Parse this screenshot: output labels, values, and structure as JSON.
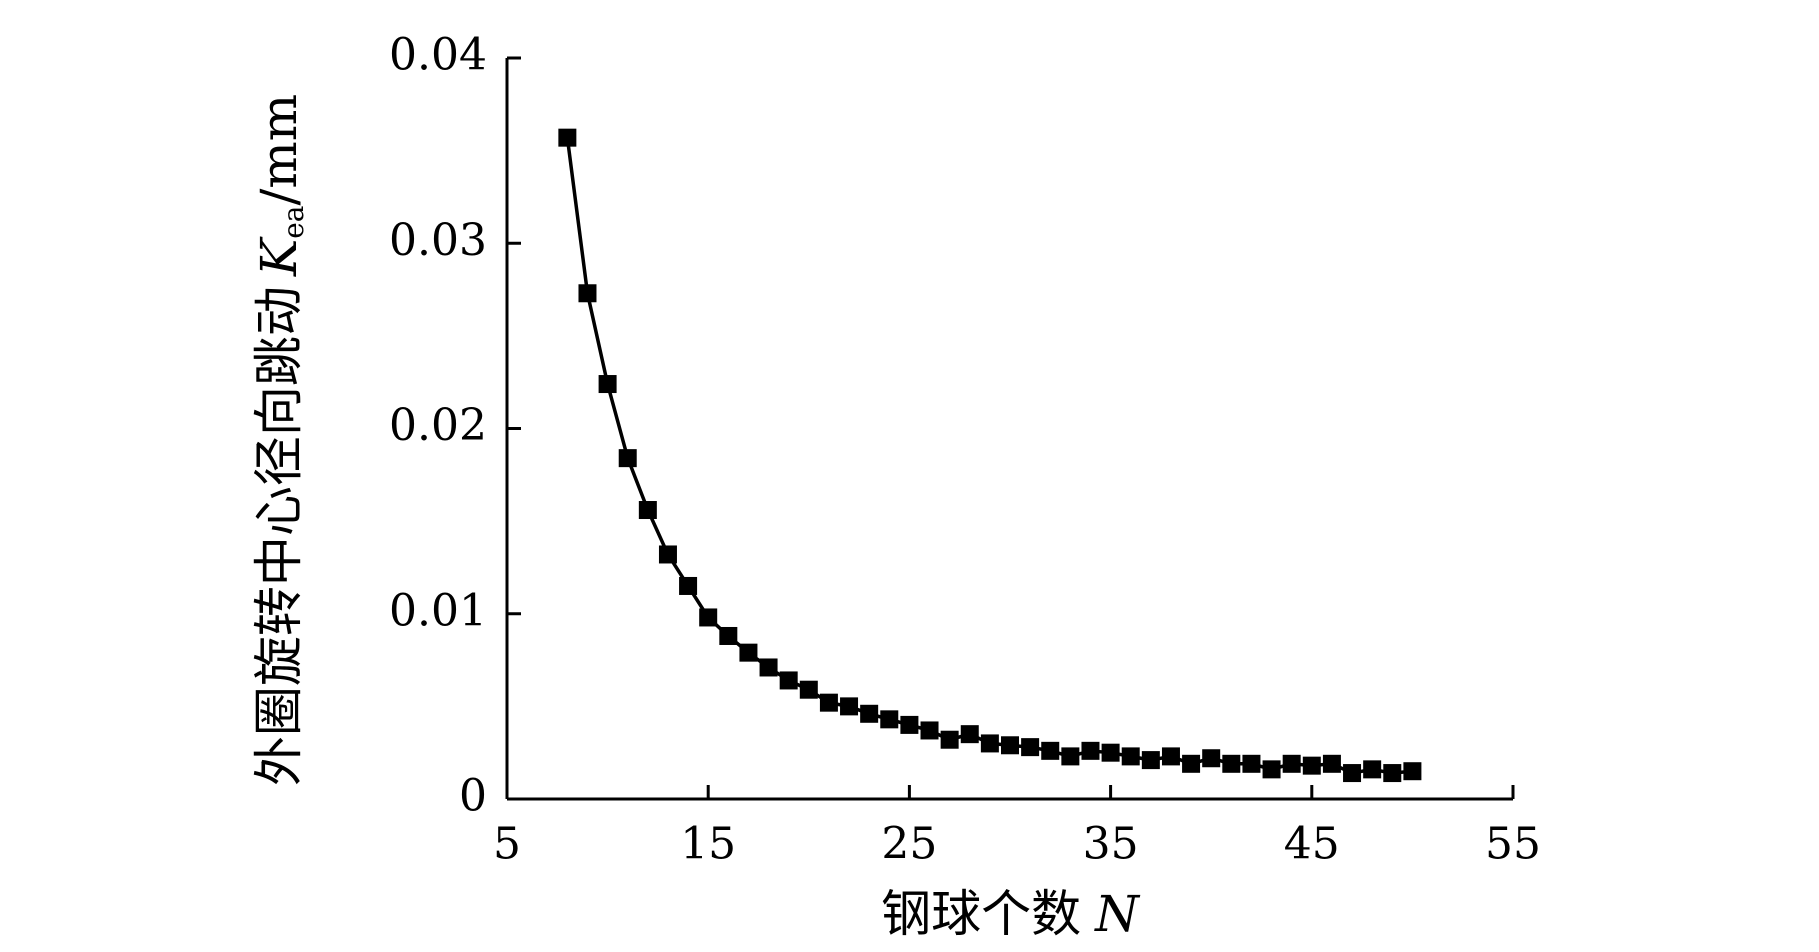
{
  "chart_data": {
    "type": "line",
    "xlabel": {
      "text": "钢球个数",
      "symbol": "N"
    },
    "ylabel": {
      "text": "外圈旋转中心径向跳动",
      "symbol": "K",
      "subscript": "ea",
      "unit": "/mm"
    },
    "x": [
      8,
      9,
      10,
      11,
      12,
      13,
      14,
      15,
      16,
      17,
      18,
      19,
      20,
      21,
      22,
      23,
      24,
      25,
      26,
      27,
      28,
      29,
      30,
      31,
      32,
      33,
      34,
      35,
      36,
      37,
      38,
      39,
      40,
      41,
      42,
      43,
      44,
      45,
      46,
      47,
      48,
      49,
      50
    ],
    "series": [
      {
        "color": "#000000",
        "values": [
          0.0357,
          0.0273,
          0.0224,
          0.0184,
          0.0156,
          0.0132,
          0.0115,
          0.0098,
          0.0088,
          0.0079,
          0.0071,
          0.0064,
          0.0059,
          0.0052,
          0.005,
          0.0046,
          0.0043,
          0.004,
          0.0037,
          0.0032,
          0.0035,
          0.003,
          0.0029,
          0.0028,
          0.0026,
          0.0023,
          0.0026,
          0.0025,
          0.0023,
          0.0021,
          0.0023,
          0.0019,
          0.0022,
          0.0019,
          0.0019,
          0.0016,
          0.0019,
          0.0018,
          0.0019,
          0.0014,
          0.0016,
          0.0014,
          0.0015
        ]
      }
    ],
    "xlim": [
      5,
      55
    ],
    "xticks": [
      5,
      15,
      25,
      35,
      45,
      55
    ],
    "ylim": [
      0,
      0.04
    ],
    "yticks": [
      0,
      0.01,
      0.02,
      0.03,
      0.04
    ]
  }
}
